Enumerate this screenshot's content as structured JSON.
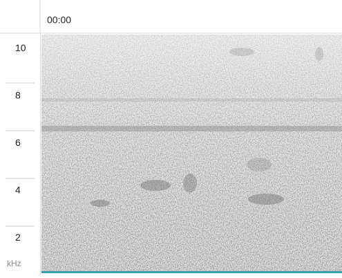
{
  "header": {
    "time": "00:00"
  },
  "frequency_axis": {
    "unit": "kHz",
    "range": [
      0.6,
      10.6
    ],
    "ticks": [
      10,
      8,
      6,
      4,
      2
    ]
  }
}
